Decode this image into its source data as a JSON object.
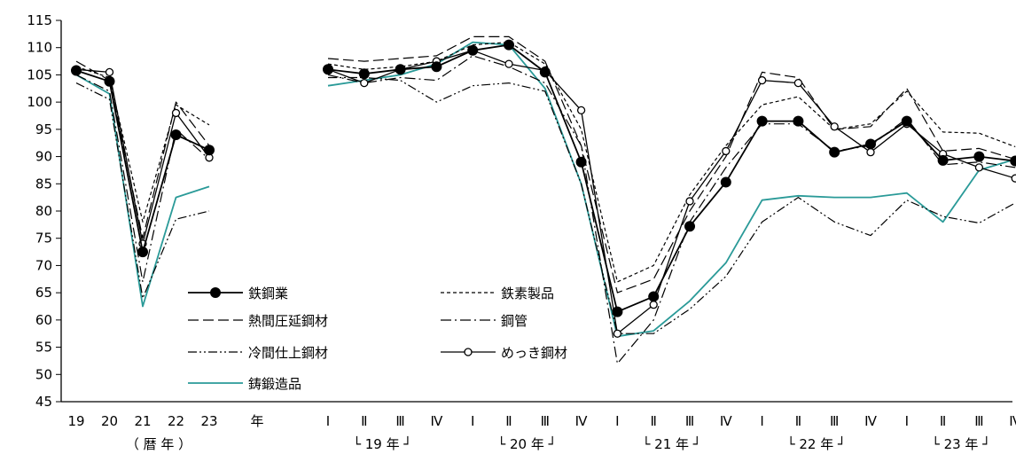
{
  "chart_data": {
    "type": "line",
    "ylim": [
      45,
      115
    ],
    "yticks": [
      45,
      50,
      55,
      60,
      65,
      70,
      75,
      80,
      85,
      90,
      95,
      100,
      105,
      110,
      115
    ],
    "annual": {
      "categories": [
        "19",
        "20",
        "21",
        "22",
        "23"
      ],
      "unit_label": "年",
      "group_label": "（ 暦 年 ）"
    },
    "quarterly": {
      "categories": [
        "Ⅰ",
        "Ⅱ",
        "Ⅲ",
        "Ⅳ",
        "Ⅰ",
        "Ⅱ",
        "Ⅲ",
        "Ⅳ",
        "Ⅰ",
        "Ⅱ",
        "Ⅲ",
        "Ⅳ",
        "Ⅰ",
        "Ⅱ",
        "Ⅲ",
        "Ⅳ",
        "Ⅰ",
        "Ⅱ",
        "Ⅲ",
        "Ⅳ"
      ],
      "year_groups": [
        {
          "label": "└ 19 年 ┘"
        },
        {
          "label": "└ 20 年 ┘"
        },
        {
          "label": "└ 21 年 ┘"
        },
        {
          "label": "└ 22 年 ┘"
        },
        {
          "label": "└ 23 年 ┘"
        }
      ]
    },
    "series": [
      {
        "name": "鉄鋼業",
        "style": "solid-filled-dot",
        "annual": [
          105.8,
          103.8,
          72.5,
          94,
          91.2
        ],
        "quarterly": [
          106,
          105.2,
          106,
          106.5,
          109.5,
          110.5,
          105.5,
          89,
          61.5,
          64.3,
          77.2,
          85.3,
          96.5,
          96.5,
          90.8,
          92.3,
          96.5,
          89.3,
          90,
          89.2
        ]
      },
      {
        "name": "鉄素製品",
        "style": "short-dash",
        "annual": [
          106.5,
          104.5,
          78,
          99.5,
          95.8
        ],
        "quarterly": [
          107,
          106,
          106.5,
          107.5,
          110.5,
          111,
          107,
          95,
          67,
          70,
          83,
          92,
          99.5,
          101,
          95,
          96,
          102,
          94.5,
          94.3,
          91.8
        ]
      },
      {
        "name": "熱間圧延鋼材",
        "style": "long-dash",
        "annual": [
          107.5,
          104,
          75,
          100,
          92
        ],
        "quarterly": [
          108,
          107.5,
          108,
          108.5,
          112,
          112,
          107.5,
          92,
          65,
          67.5,
          80,
          90,
          105.5,
          104.5,
          95,
          95.5,
          102.5,
          91,
          91.5,
          89.5
        ]
      },
      {
        "name": "鋼管",
        "style": "dash-dot",
        "annual": [
          105,
          102,
          67,
          95,
          89.5
        ],
        "quarterly": [
          105,
          103.5,
          104.5,
          104,
          108.5,
          106.5,
          103.5,
          92,
          52,
          60,
          78,
          88,
          96,
          96,
          91,
          92,
          97,
          88.5,
          89,
          88
        ]
      },
      {
        "name": "冷間仕上鋼材",
        "style": "dash-dot-dot",
        "annual": [
          103.5,
          100.5,
          64,
          78.5,
          80
        ],
        "quarterly": [
          104.5,
          104.5,
          104,
          100,
          103,
          103.5,
          102,
          85,
          57.5,
          57.5,
          62,
          68,
          78,
          82.5,
          78,
          75.5,
          82,
          79,
          77.8,
          81.5
        ]
      },
      {
        "name": "めっき鋼材",
        "style": "solid-open-dot",
        "annual": [
          106,
          105.5,
          74,
          98,
          89.8
        ],
        "quarterly": [
          106,
          103.5,
          106,
          107.5,
          109.5,
          107,
          105.8,
          98.5,
          57.5,
          62.8,
          81.8,
          91,
          104,
          103.5,
          95.5,
          90.8,
          96,
          90.5,
          88,
          86
        ]
      },
      {
        "name": "鋳鍛造品",
        "style": "teal-solid",
        "color": "#2a9a98",
        "annual": [
          105,
          101.5,
          62.5,
          82.5,
          84.5
        ],
        "quarterly": [
          103,
          104,
          105,
          107,
          111,
          110.5,
          102.5,
          85,
          57,
          58,
          63.5,
          70.5,
          82,
          82.8,
          82.5,
          82.5,
          83.3,
          78,
          87.5,
          89.5
        ]
      }
    ],
    "legend": {
      "placement": "lower-left",
      "columns": 2
    }
  }
}
